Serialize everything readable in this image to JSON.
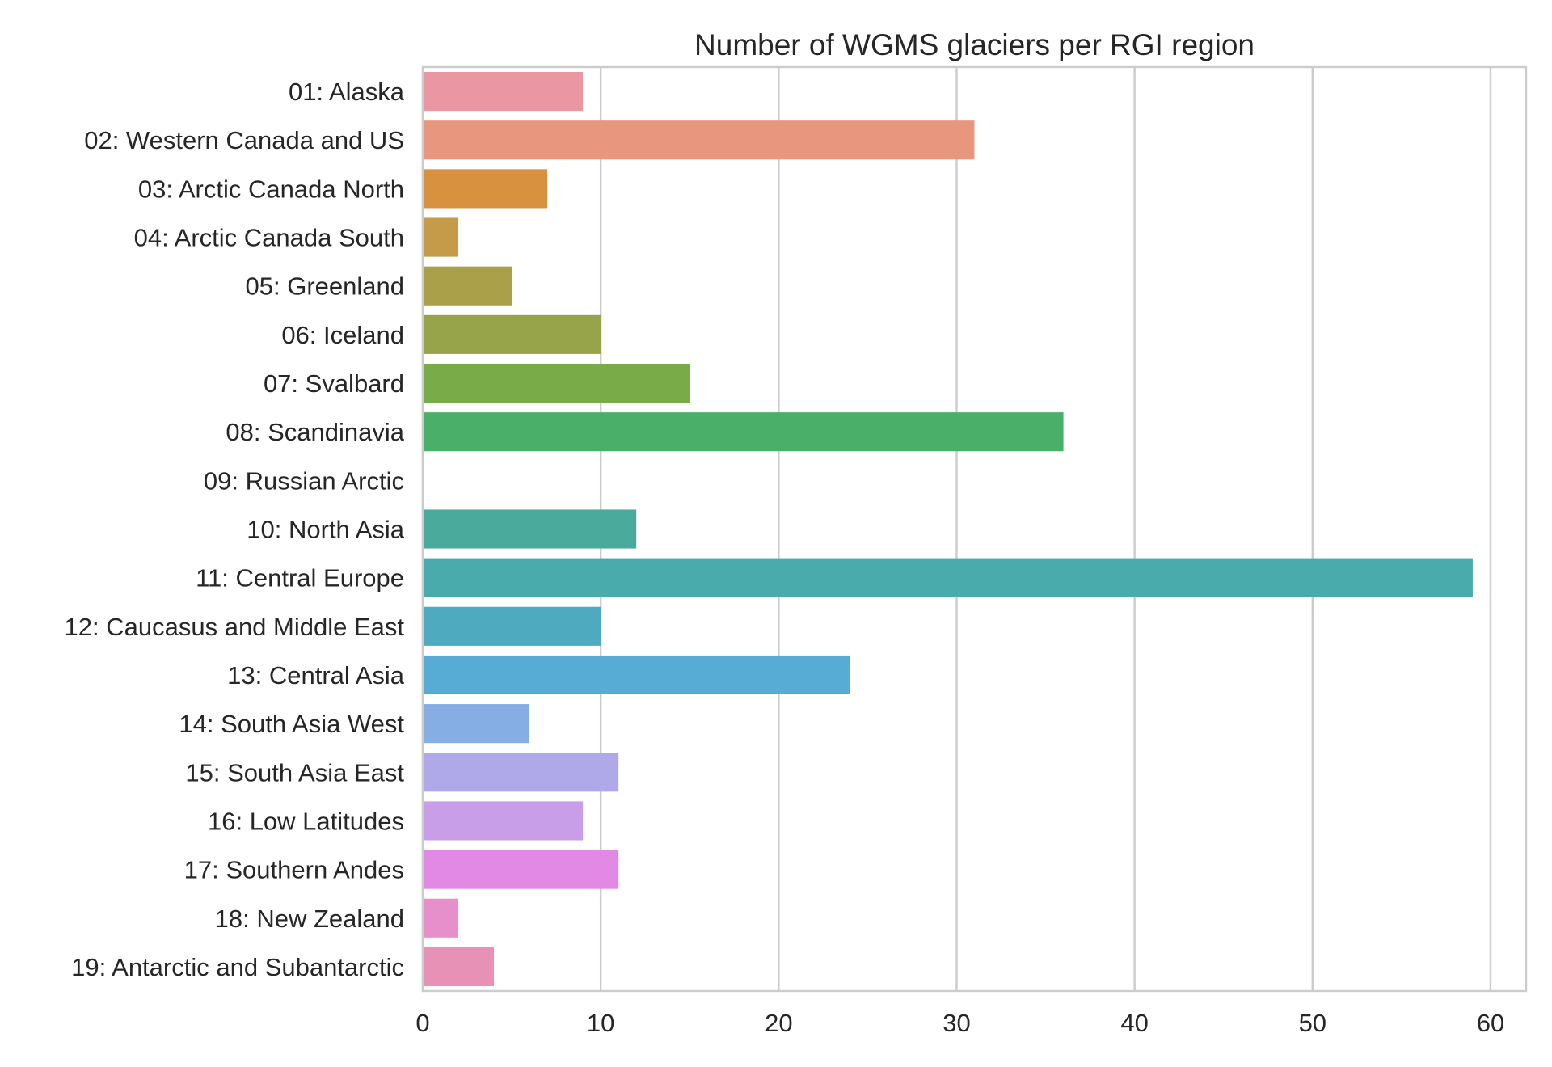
{
  "chart_data": {
    "type": "bar",
    "orientation": "horizontal",
    "title": "Number of WGMS glaciers per RGI region",
    "xlabel": "",
    "ylabel": "",
    "xlim": [
      0,
      62
    ],
    "xticks": [
      0,
      10,
      20,
      30,
      40,
      50,
      60
    ],
    "grid": "vertical",
    "categories": [
      "01: Alaska",
      "02: Western Canada and US",
      "03: Arctic Canada North",
      "04: Arctic Canada South",
      "05: Greenland",
      "06: Iceland",
      "07: Svalbard",
      "08: Scandinavia",
      "09: Russian Arctic",
      "10: North Asia",
      "11: Central Europe",
      "12: Caucasus and Middle East",
      "13: Central Asia",
      "14: South Asia West",
      "15: South Asia East",
      "16: Low Latitudes",
      "17: Southern Andes",
      "18: New Zealand",
      "19: Antarctic and Subantarctic"
    ],
    "values": [
      9,
      31,
      7,
      2,
      5,
      10,
      15,
      36,
      0,
      12,
      59,
      10,
      24,
      6,
      11,
      9,
      11,
      2,
      4
    ],
    "colors": [
      "#ea96a3",
      "#e8967e",
      "#d7913f",
      "#c59a49",
      "#aba04a",
      "#98a44a",
      "#79ac48",
      "#4aaf69",
      "#48ad8c",
      "#4aab9d",
      "#4aabad",
      "#4eaabe",
      "#56acd4",
      "#85aee5",
      "#afa9ea",
      "#c89ee8",
      "#e289e6",
      "#e78fcb",
      "#e891b7"
    ]
  }
}
